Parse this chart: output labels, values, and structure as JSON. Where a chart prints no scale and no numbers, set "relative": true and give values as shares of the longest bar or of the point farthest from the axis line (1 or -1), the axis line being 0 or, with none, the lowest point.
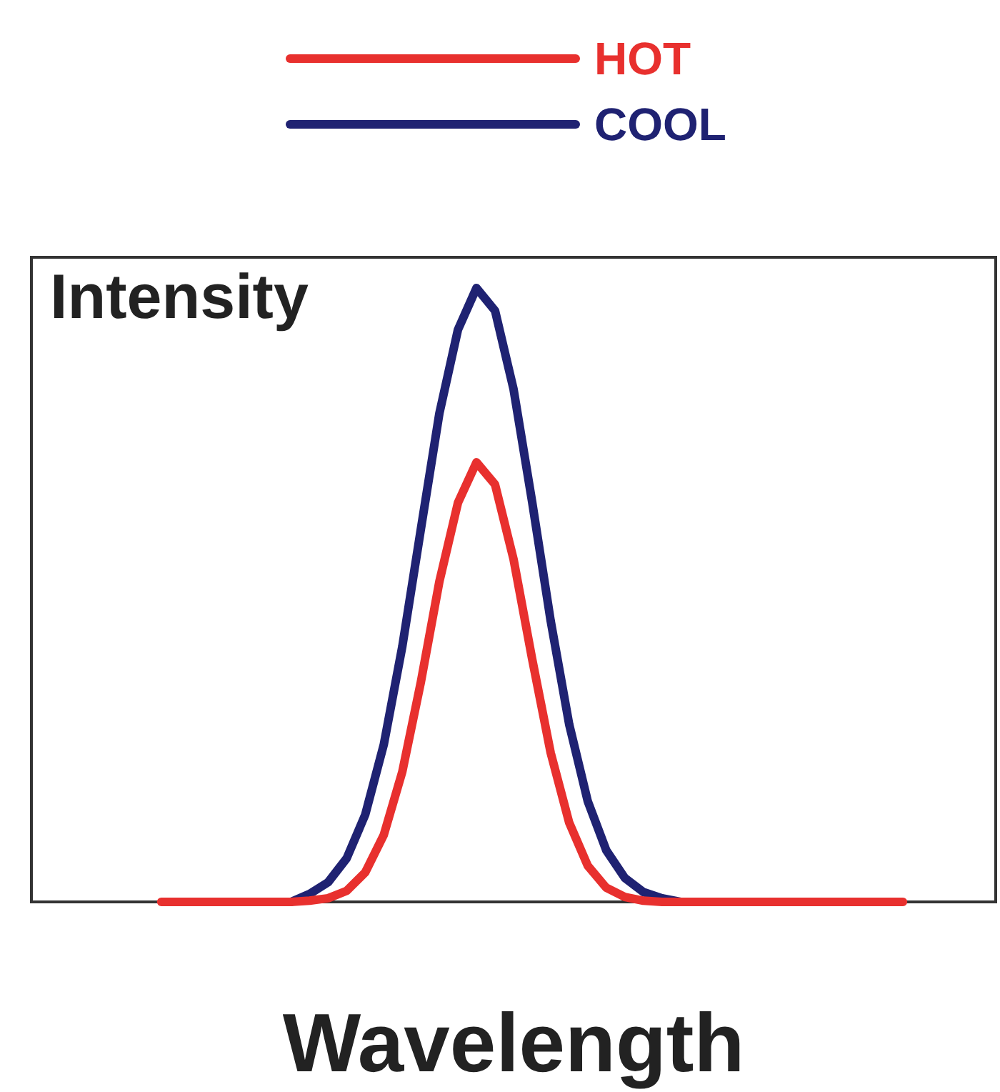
{
  "chart_data": {
    "type": "line",
    "relative": true,
    "xlabel": "Wavelength",
    "ylabel": "Intensity",
    "legend": "top",
    "grid": false,
    "marker": "none",
    "line_style": "solid",
    "categories": [
      null,
      null,
      null,
      null,
      null,
      null,
      null,
      null,
      null,
      null,
      null,
      null,
      null,
      null,
      null,
      null,
      null,
      null,
      null,
      null,
      null,
      null,
      null,
      null,
      null,
      null,
      null,
      null,
      null,
      null,
      null,
      null,
      null,
      null,
      null,
      null,
      null,
      null,
      null,
      null,
      null,
      null,
      null,
      null,
      null,
      null,
      null,
      null,
      null,
      null,
      null,
      null,
      null
    ],
    "series": [
      {
        "name": "HOT",
        "color": "#e8302e",
        "values": [
          null,
          null,
          null,
          null,
          null,
          null,
          null,
          0,
          0,
          0,
          0,
          0,
          0,
          0,
          0,
          0.002,
          0.006,
          0.018,
          0.048,
          0.109,
          0.212,
          0.358,
          0.522,
          0.65,
          0.716,
          0.68,
          0.558,
          0.396,
          0.243,
          0.129,
          0.059,
          0.023,
          0.008,
          0.002,
          0,
          0,
          0,
          0,
          0,
          0,
          0,
          0,
          0,
          0,
          0,
          0,
          0,
          0,
          null,
          null,
          null,
          null,
          null
        ]
      },
      {
        "name": "COOL",
        "color": "#1f2272",
        "values": [
          null,
          null,
          null,
          null,
          null,
          null,
          null,
          null,
          null,
          null,
          null,
          null,
          null,
          0,
          0,
          0.013,
          0.032,
          0.071,
          0.142,
          0.256,
          0.416,
          0.607,
          0.796,
          0.932,
          1,
          0.963,
          0.835,
          0.652,
          0.458,
          0.289,
          0.164,
          0.084,
          0.039,
          0.016,
          0.006,
          0,
          0,
          null,
          null,
          null,
          null,
          null,
          null,
          null,
          null,
          null,
          null,
          null,
          null,
          null,
          null,
          null,
          null
        ]
      }
    ]
  }
}
